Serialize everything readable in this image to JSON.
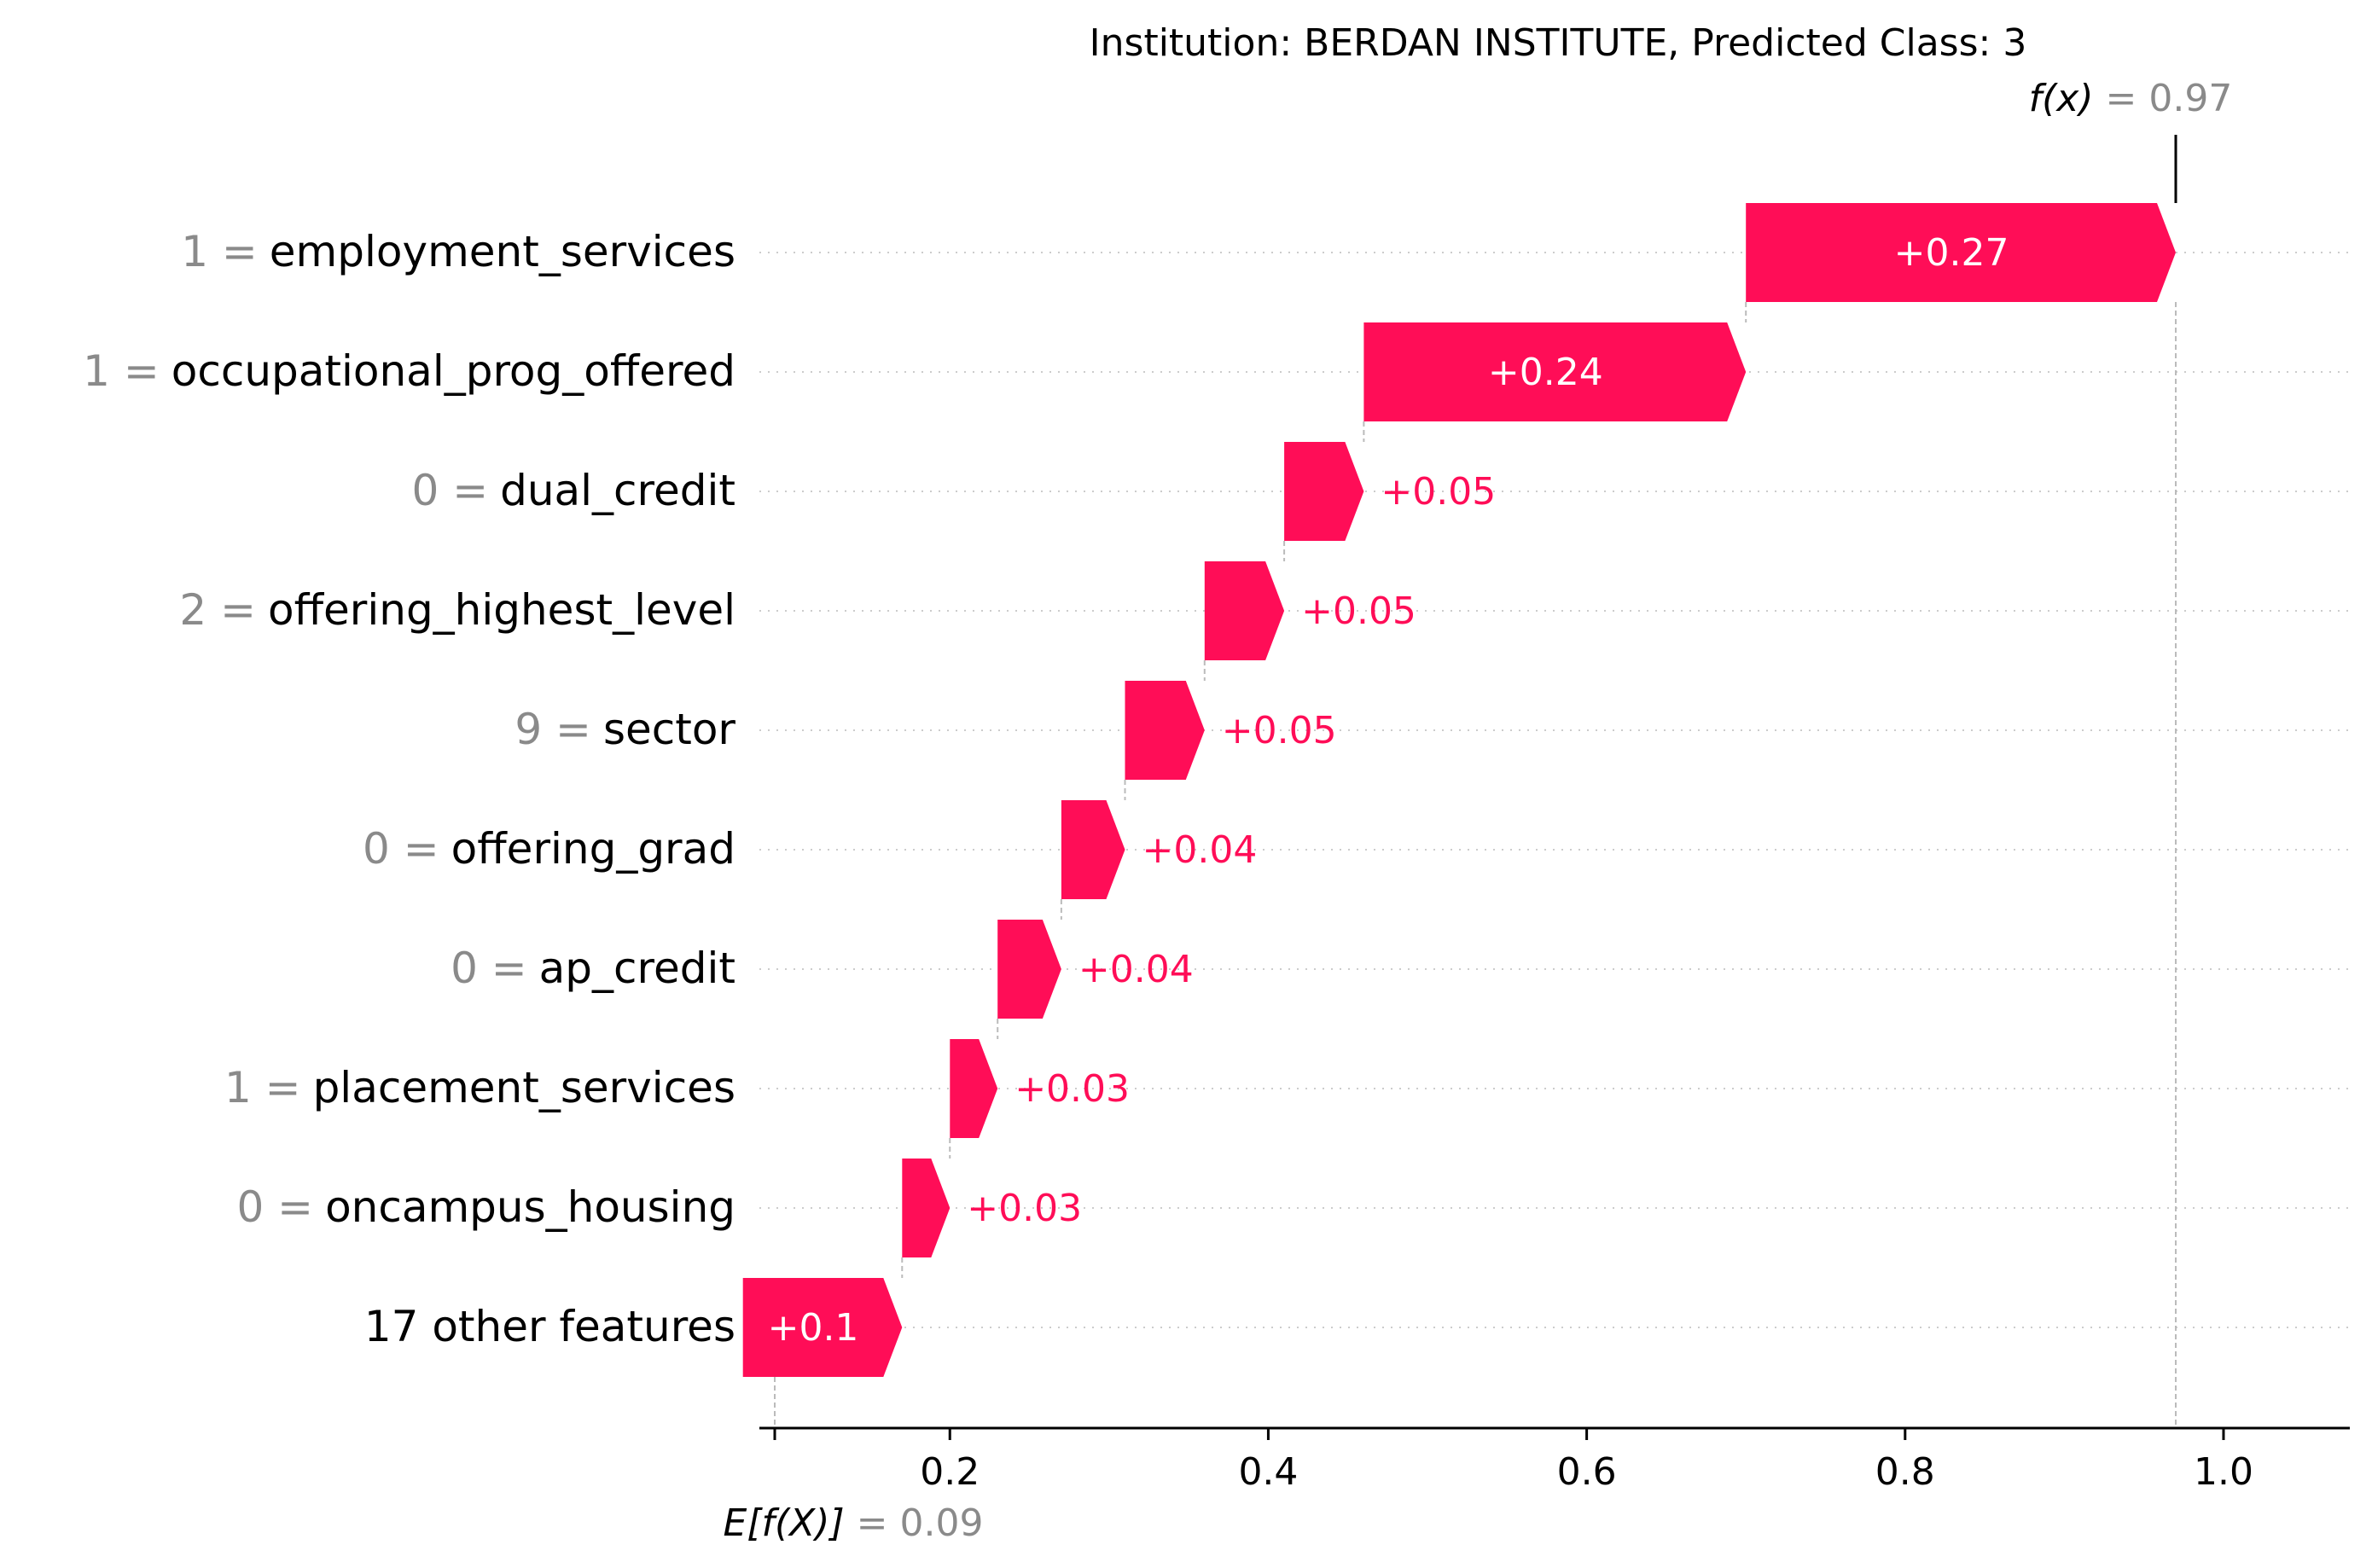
{
  "chart_data": {
    "type": "waterfall",
    "title": "Institution: BERDAN INSTITUTE, Predicted Class: 3",
    "base_value": 0.09,
    "base_label": {
      "prefix": "E[f(X)]",
      "suffix": "= 0.09"
    },
    "output_value": 0.97,
    "output_label": {
      "prefix": "f(x)",
      "suffix": "= 0.97"
    },
    "features": [
      {
        "value": "1 =",
        "name": "employment_services",
        "contribution": 0.27,
        "label": "+0.27"
      },
      {
        "value": "1 =",
        "name": "occupational_prog_offered",
        "contribution": 0.24,
        "label": "+0.24"
      },
      {
        "value": "0 =",
        "name": "dual_credit",
        "contribution": 0.05,
        "label": "+0.05"
      },
      {
        "value": "2 =",
        "name": "offering_highest_level",
        "contribution": 0.05,
        "label": "+0.05"
      },
      {
        "value": "9 =",
        "name": "sector",
        "contribution": 0.05,
        "label": "+0.05"
      },
      {
        "value": "0 =",
        "name": "offering_grad",
        "contribution": 0.04,
        "label": "+0.04"
      },
      {
        "value": "0 =",
        "name": "ap_credit",
        "contribution": 0.04,
        "label": "+0.04"
      },
      {
        "value": "1 =",
        "name": "placement_services",
        "contribution": 0.03,
        "label": "+0.03"
      },
      {
        "value": "0 =",
        "name": "oncampus_housing",
        "contribution": 0.03,
        "label": "+0.03"
      },
      {
        "value": "",
        "name": "17 other features",
        "contribution": 0.1,
        "label": "+0.1"
      }
    ],
    "x_ticks": [
      "0.2",
      "0.4",
      "0.6",
      "0.8",
      "1.0"
    ],
    "xlim": [
      0.08,
      1.11
    ],
    "bar_color": "#ff0d57",
    "grid": "dotted row guides"
  }
}
